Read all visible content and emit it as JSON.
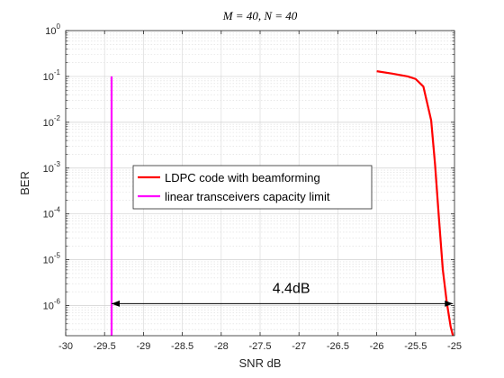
{
  "chart_data": {
    "type": "line",
    "title": "M = 40, N = 40",
    "xlabel": "SNR dB",
    "ylabel": "BER",
    "xlim": [
      -30,
      -25
    ],
    "ylim": [
      2.2e-07,
      1
    ],
    "yscale": "log",
    "grid": "on (major and minor)",
    "x_ticks": [
      "-30",
      "-29.5",
      "-29",
      "-28.5",
      "-28",
      "-27.5",
      "-27",
      "-26.5",
      "-26",
      "-25.5",
      "-25"
    ],
    "y_ticks": [
      {
        "base": "10",
        "exp": "0"
      },
      {
        "base": "10",
        "exp": "-1"
      },
      {
        "base": "10",
        "exp": "-2"
      },
      {
        "base": "10",
        "exp": "-3"
      },
      {
        "base": "10",
        "exp": "-4"
      },
      {
        "base": "10",
        "exp": "-5"
      },
      {
        "base": "10",
        "exp": "-6"
      }
    ],
    "legend_position": "center-left",
    "series": [
      {
        "name": "LDPC code with beamforming",
        "color": "#ff0000",
        "x": [
          -26.0,
          -25.8,
          -25.6,
          -25.5,
          -25.4,
          -25.3,
          -25.25,
          -25.2,
          -25.15,
          -25.1,
          -25.05,
          -25.02
        ],
        "y": [
          0.13,
          0.115,
          0.1,
          0.088,
          0.06,
          0.011,
          0.0012,
          8e-05,
          6e-06,
          1.2e-06,
          3.5e-07,
          2.2e-07
        ]
      },
      {
        "name": "linear transceivers capacity limit",
        "color": "#ff00ff",
        "x": [
          -29.41,
          -29.41
        ],
        "y": [
          0.1,
          2.2e-07
        ]
      }
    ],
    "annotation": {
      "text": "4.4dB",
      "x_from": -29.41,
      "x_to": -25.02,
      "y": 1.1e-06
    }
  }
}
